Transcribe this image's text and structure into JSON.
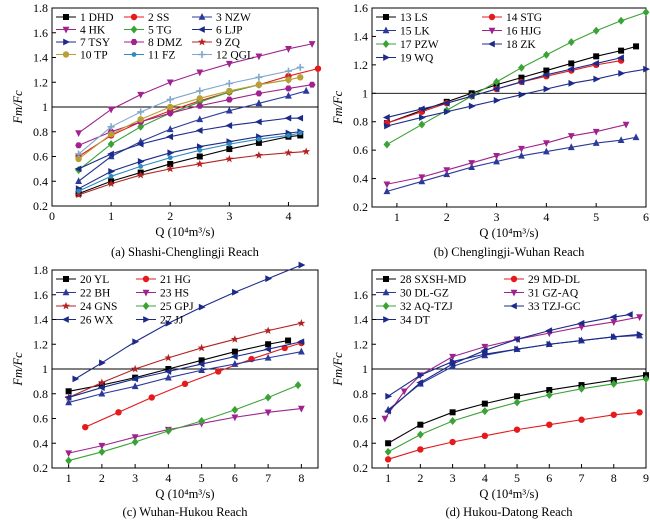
{
  "chart_data": [
    {
      "type": "line",
      "panel": "a",
      "caption": "(a) Shashi-Chenglingji Reach",
      "xlabel": "Q (10⁴m³/s)",
      "ylabel": "Fm/Fc",
      "xlim": [
        0,
        4.5
      ],
      "ylim": [
        0.2,
        1.8
      ],
      "xticks": [
        0,
        1,
        2,
        3,
        4
      ],
      "yticks": [
        0.2,
        0.4,
        0.6,
        0.8,
        1.0,
        1.2,
        1.4,
        1.6,
        1.8
      ],
      "reference_line": 1.0,
      "legend_columns": 3,
      "series": [
        {
          "name": "1 DHD",
          "color": "#000000",
          "marker": "square",
          "x": [
            0.45,
            1.0,
            1.5,
            2.0,
            2.5,
            3.0,
            3.5,
            4.0,
            4.2
          ],
          "y": [
            0.3,
            0.4,
            0.47,
            0.54,
            0.6,
            0.66,
            0.71,
            0.76,
            0.77
          ]
        },
        {
          "name": "2 SS",
          "color": "#e41a1c",
          "marker": "circle",
          "x": [
            0.45,
            1.0,
            1.5,
            2.0,
            2.5,
            3.0,
            3.5,
            4.0,
            4.5
          ],
          "y": [
            0.6,
            0.77,
            0.88,
            0.97,
            1.05,
            1.12,
            1.18,
            1.25,
            1.31
          ]
        },
        {
          "name": "3 NZW",
          "color": "#2b3a9a",
          "marker": "triangle-up",
          "x": [
            0.45,
            1.0,
            1.5,
            2.0,
            2.5,
            3.0,
            3.5,
            4.0,
            4.3
          ],
          "y": [
            0.4,
            0.6,
            0.72,
            0.82,
            0.9,
            0.97,
            1.03,
            1.09,
            1.13
          ]
        },
        {
          "name": "4 HK",
          "color": "#a0228f",
          "marker": "triangle-down",
          "x": [
            0.45,
            1.0,
            1.5,
            2.0,
            2.5,
            3.0,
            3.5,
            4.0,
            4.4
          ],
          "y": [
            0.79,
            0.98,
            1.1,
            1.2,
            1.28,
            1.35,
            1.41,
            1.47,
            1.51
          ]
        },
        {
          "name": "5 TG",
          "color": "#3aa335",
          "marker": "diamond",
          "x": [
            0.45,
            1.0,
            1.5,
            2.0,
            2.5,
            3.0,
            3.5,
            4.0
          ],
          "y": [
            0.49,
            0.7,
            0.84,
            0.95,
            1.04,
            1.12,
            1.18,
            1.22
          ]
        },
        {
          "name": "6 LJP",
          "color": "#1c2a8a",
          "marker": "triangle-left",
          "x": [
            0.45,
            1.0,
            1.5,
            2.0,
            2.5,
            3.0,
            3.5,
            4.0,
            4.2
          ],
          "y": [
            0.5,
            0.62,
            0.7,
            0.76,
            0.81,
            0.85,
            0.88,
            0.91,
            0.91
          ]
        },
        {
          "name": "7 TSY",
          "color": "#1c2a8a",
          "marker": "triangle-right",
          "x": [
            0.45,
            1.0,
            1.5,
            2.0,
            2.5,
            3.0,
            3.5,
            4.0,
            4.2
          ],
          "y": [
            0.34,
            0.48,
            0.56,
            0.63,
            0.68,
            0.72,
            0.76,
            0.79,
            0.8
          ]
        },
        {
          "name": "8 DMZ",
          "color": "#a0228f",
          "marker": "hexagon",
          "x": [
            0.45,
            1.0,
            1.5,
            2.0,
            2.5,
            3.0,
            3.5,
            4.0,
            4.4
          ],
          "y": [
            0.69,
            0.8,
            0.88,
            0.95,
            1.01,
            1.06,
            1.11,
            1.15,
            1.18
          ]
        },
        {
          "name": "9 ZQ",
          "color": "#b22222",
          "marker": "star",
          "x": [
            0.45,
            1.0,
            1.5,
            2.0,
            2.5,
            3.0,
            3.5,
            4.0,
            4.3
          ],
          "y": [
            0.29,
            0.38,
            0.45,
            0.5,
            0.54,
            0.58,
            0.61,
            0.63,
            0.64
          ]
        },
        {
          "name": "10 TP",
          "color": "#b8a037",
          "marker": "circle",
          "x": [
            0.45,
            1.0,
            1.5,
            2.0,
            2.5,
            3.0,
            3.5,
            4.0,
            4.2
          ],
          "y": [
            0.58,
            0.78,
            0.9,
            1.0,
            1.07,
            1.13,
            1.18,
            1.22,
            1.24
          ]
        },
        {
          "name": "11 FZ",
          "color": "#2c8bbf",
          "marker": "circle-small",
          "x": [
            0.45,
            1.0,
            1.5,
            2.0,
            2.5,
            3.0,
            3.5,
            4.0,
            4.2
          ],
          "y": [
            0.32,
            0.44,
            0.52,
            0.59,
            0.65,
            0.7,
            0.74,
            0.77,
            0.79
          ]
        },
        {
          "name": "12 QGL",
          "color": "#7fa7c9",
          "marker": "plus",
          "x": [
            0.45,
            1.0,
            1.5,
            2.0,
            2.5,
            3.0,
            3.5,
            4.0,
            4.2
          ],
          "y": [
            0.62,
            0.84,
            0.96,
            1.06,
            1.13,
            1.19,
            1.24,
            1.29,
            1.32
          ]
        }
      ]
    },
    {
      "type": "line",
      "panel": "b",
      "caption": "(b) Chenglingji-Wuhan Reach",
      "xlabel": "Q (10⁴m³/s)",
      "ylabel": "Fm/Fc",
      "xlim": [
        0.5,
        6
      ],
      "ylim": [
        0.2,
        1.6
      ],
      "xticks": [
        1,
        2,
        3,
        4,
        5,
        6
      ],
      "yticks": [
        0.2,
        0.4,
        0.6,
        0.8,
        1.0,
        1.2,
        1.4,
        1.6
      ],
      "reference_line": 1.0,
      "legend_columns": 2,
      "series": [
        {
          "name": "13 LS",
          "color": "#000000",
          "marker": "square",
          "x": [
            0.8,
            1.5,
            2.0,
            2.5,
            3.0,
            3.5,
            4.0,
            4.5,
            5.0,
            5.5,
            5.8
          ],
          "y": [
            0.79,
            0.88,
            0.94,
            1.0,
            1.06,
            1.11,
            1.16,
            1.21,
            1.26,
            1.3,
            1.33
          ]
        },
        {
          "name": "14 STG",
          "color": "#e41a1c",
          "marker": "circle",
          "x": [
            0.8,
            1.5,
            2.0,
            2.5,
            3.0,
            3.5,
            4.0,
            4.5,
            5.0,
            5.5
          ],
          "y": [
            0.79,
            0.87,
            0.93,
            0.98,
            1.03,
            1.08,
            1.12,
            1.16,
            1.2,
            1.23
          ]
        },
        {
          "name": "15 LK",
          "color": "#2b3a9a",
          "marker": "triangle-up",
          "x": [
            0.8,
            1.5,
            2.0,
            2.5,
            3.0,
            3.5,
            4.0,
            4.5,
            5.0,
            5.5,
            5.8
          ],
          "y": [
            0.31,
            0.38,
            0.43,
            0.48,
            0.52,
            0.56,
            0.59,
            0.62,
            0.65,
            0.67,
            0.69
          ]
        },
        {
          "name": "16 HJG",
          "color": "#a0228f",
          "marker": "triangle-down",
          "x": [
            0.8,
            1.5,
            2.0,
            2.5,
            3.0,
            3.5,
            4.0,
            4.5,
            5.0,
            5.6
          ],
          "y": [
            0.36,
            0.41,
            0.46,
            0.51,
            0.56,
            0.61,
            0.65,
            0.7,
            0.73,
            0.78
          ]
        },
        {
          "name": "17 PZW",
          "color": "#3aa335",
          "marker": "diamond",
          "x": [
            0.8,
            1.5,
            2.0,
            2.5,
            3.0,
            3.5,
            4.0,
            4.5,
            5.0,
            5.5,
            6.0
          ],
          "y": [
            0.64,
            0.78,
            0.88,
            0.98,
            1.08,
            1.18,
            1.27,
            1.36,
            1.44,
            1.51,
            1.57
          ]
        },
        {
          "name": "18 ZK",
          "color": "#1c2a8a",
          "marker": "triangle-left",
          "x": [
            0.8,
            1.5,
            2.0,
            2.5,
            3.0,
            3.5,
            4.0,
            4.5,
            5.0,
            5.5
          ],
          "y": [
            0.83,
            0.89,
            0.93,
            0.98,
            1.03,
            1.08,
            1.13,
            1.17,
            1.21,
            1.25
          ]
        },
        {
          "name": "19 WQ",
          "color": "#1c2a8a",
          "marker": "triangle-right",
          "x": [
            0.8,
            1.5,
            2.0,
            2.5,
            3.0,
            3.5,
            4.0,
            4.5,
            5.0,
            5.5,
            6.0
          ],
          "y": [
            0.77,
            0.83,
            0.87,
            0.91,
            0.95,
            0.99,
            1.03,
            1.07,
            1.1,
            1.14,
            1.17
          ]
        }
      ]
    },
    {
      "type": "line",
      "panel": "c",
      "caption": "(c) Wuhan-Hukou Reach",
      "xlabel": "Q (10⁴m³/s)",
      "ylabel": "Fm/Fc",
      "xlim": [
        0.5,
        8.5
      ],
      "ylim": [
        0.2,
        1.8
      ],
      "xticks": [
        1,
        2,
        3,
        4,
        5,
        6,
        7,
        8
      ],
      "yticks": [
        0.2,
        0.4,
        0.6,
        0.8,
        1.0,
        1.2,
        1.4,
        1.6,
        1.8
      ],
      "reference_line": 1.0,
      "legend_columns": 2,
      "series": [
        {
          "name": "20 YL",
          "color": "#000000",
          "marker": "square",
          "x": [
            1.0,
            2.0,
            3.0,
            4.0,
            5.0,
            6.0,
            7.0,
            7.6
          ],
          "y": [
            0.82,
            0.87,
            0.93,
            1.0,
            1.07,
            1.14,
            1.2,
            1.23
          ]
        },
        {
          "name": "21 HG",
          "color": "#e41a1c",
          "marker": "circle",
          "x": [
            1.5,
            2.5,
            3.5,
            4.5,
            5.5,
            6.5,
            7.5,
            8.0
          ],
          "y": [
            0.53,
            0.65,
            0.77,
            0.88,
            0.98,
            1.08,
            1.17,
            1.21
          ]
        },
        {
          "name": "22 BH",
          "color": "#2b3a9a",
          "marker": "triangle-up",
          "x": [
            1.0,
            2.0,
            3.0,
            4.0,
            5.0,
            6.0,
            7.0,
            8.0
          ],
          "y": [
            0.73,
            0.8,
            0.86,
            0.93,
            0.99,
            1.04,
            1.09,
            1.14
          ]
        },
        {
          "name": "23 HS",
          "color": "#a0228f",
          "marker": "triangle-down",
          "x": [
            1.0,
            2.0,
            3.0,
            4.0,
            5.0,
            6.0,
            7.0,
            8.0
          ],
          "y": [
            0.32,
            0.38,
            0.45,
            0.51,
            0.56,
            0.61,
            0.65,
            0.68
          ]
        },
        {
          "name": "24 GNS",
          "color": "#b22222",
          "marker": "star",
          "x": [
            1.0,
            2.0,
            3.0,
            4.0,
            5.0,
            6.0,
            7.0,
            8.0
          ],
          "y": [
            0.77,
            0.89,
            1.0,
            1.09,
            1.17,
            1.24,
            1.31,
            1.37
          ]
        },
        {
          "name": "25 GPJ",
          "color": "#3aa335",
          "marker": "diamond",
          "x": [
            1.0,
            2.0,
            3.0,
            4.0,
            5.0,
            6.0,
            7.0,
            7.9
          ],
          "y": [
            0.26,
            0.33,
            0.41,
            0.5,
            0.58,
            0.67,
            0.77,
            0.87
          ]
        },
        {
          "name": "26 WX",
          "color": "#1c2a8a",
          "marker": "triangle-left",
          "x": [
            1.0,
            2.0,
            3.0,
            4.0,
            5.0,
            6.0,
            7.0,
            8.0
          ],
          "y": [
            0.77,
            0.85,
            0.92,
            0.98,
            1.04,
            1.1,
            1.16,
            1.22
          ]
        },
        {
          "name": "27 JJ",
          "color": "#1c2a8a",
          "marker": "triangle-right",
          "x": [
            1.2,
            2.0,
            3.0,
            4.0,
            5.0,
            6.0,
            7.0,
            8.0
          ],
          "y": [
            0.92,
            1.05,
            1.22,
            1.37,
            1.5,
            1.62,
            1.73,
            1.84
          ]
        }
      ]
    },
    {
      "type": "line",
      "panel": "d",
      "caption": "(d) Hukou-Datong Reach",
      "xlabel": "Q (10⁴m³/s)",
      "ylabel": "Fm/Fc",
      "xlim": [
        0.5,
        9
      ],
      "ylim": [
        0.2,
        1.8
      ],
      "xticks": [
        1,
        2,
        3,
        4,
        5,
        6,
        7,
        8,
        9
      ],
      "yticks": [
        0.2,
        0.4,
        0.6,
        0.8,
        1.0,
        1.2,
        1.4,
        1.6
      ],
      "reference_line": 1.0,
      "legend_columns": 2,
      "series": [
        {
          "name": "28 SXSH-MD",
          "color": "#000000",
          "marker": "square",
          "x": [
            1.0,
            2.0,
            3.0,
            4.0,
            5.0,
            6.0,
            7.0,
            8.0,
            9.0
          ],
          "y": [
            0.4,
            0.55,
            0.65,
            0.72,
            0.78,
            0.83,
            0.87,
            0.91,
            0.95
          ]
        },
        {
          "name": "29 MD-DL",
          "color": "#e41a1c",
          "marker": "circle",
          "x": [
            1.0,
            2.0,
            3.0,
            4.0,
            5.0,
            6.0,
            7.0,
            8.0,
            8.8
          ],
          "y": [
            0.27,
            0.35,
            0.41,
            0.46,
            0.51,
            0.55,
            0.59,
            0.63,
            0.65
          ]
        },
        {
          "name": "30 DL-GZ",
          "color": "#2b3a9a",
          "marker": "triangle-up",
          "x": [
            1.0,
            2.0,
            3.0,
            4.0,
            5.0,
            6.0,
            7.0,
            8.0,
            8.8
          ],
          "y": [
            0.67,
            0.88,
            1.02,
            1.11,
            1.16,
            1.2,
            1.23,
            1.26,
            1.27
          ]
        },
        {
          "name": "31 GZ-AQ",
          "color": "#a0228f",
          "marker": "triangle-down",
          "x": [
            0.9,
            1.5,
            2.0,
            3.0,
            4.0,
            5.0,
            6.0,
            7.0,
            8.0,
            8.8
          ],
          "y": [
            0.6,
            0.82,
            0.95,
            1.1,
            1.18,
            1.24,
            1.29,
            1.34,
            1.38,
            1.42
          ]
        },
        {
          "name": "32 AQ-TZJ",
          "color": "#3aa335",
          "marker": "diamond",
          "x": [
            1.0,
            2.0,
            3.0,
            4.0,
            5.0,
            6.0,
            7.0,
            8.0,
            9.0
          ],
          "y": [
            0.33,
            0.47,
            0.58,
            0.66,
            0.73,
            0.79,
            0.84,
            0.88,
            0.92
          ]
        },
        {
          "name": "33 TZJ-GC",
          "color": "#1c2a8a",
          "marker": "triangle-left",
          "x": [
            1.0,
            2.0,
            3.0,
            4.0,
            5.0,
            6.0,
            7.0,
            8.0,
            8.5
          ],
          "y": [
            0.66,
            0.89,
            1.04,
            1.15,
            1.24,
            1.31,
            1.37,
            1.42,
            1.44
          ]
        },
        {
          "name": "34 DT",
          "color": "#1c2a8a",
          "marker": "triangle-right",
          "x": [
            1.0,
            2.0,
            3.0,
            4.0,
            5.0,
            6.0,
            7.0,
            8.0,
            8.8
          ],
          "y": [
            0.78,
            0.95,
            1.06,
            1.12,
            1.16,
            1.2,
            1.23,
            1.26,
            1.28
          ]
        }
      ]
    }
  ]
}
